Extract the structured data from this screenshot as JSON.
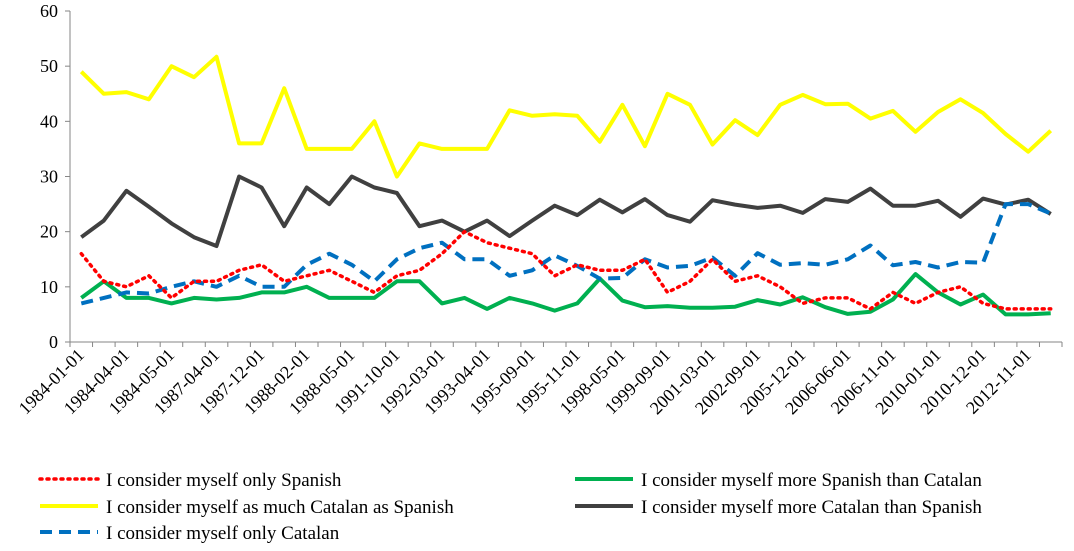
{
  "chart_data": {
    "type": "line",
    "title": "",
    "xlabel": "",
    "ylabel": "",
    "ylim": [
      0,
      60
    ],
    "yticks": [
      0,
      10,
      20,
      30,
      40,
      50,
      60
    ],
    "grid": false,
    "legend_position": "bottom",
    "tick_labels": [
      "1984-01-01",
      "1984-04-01",
      "1984-05-01",
      "1987-04-01",
      "1987-12-01",
      "1988-02-01",
      "1988-05-01",
      "1991-10-01",
      "1992-03-01",
      "1993-04-01",
      "1995-09-01",
      "1995-11-01",
      "1998-05-01",
      "1999-09-01",
      "2001-03-01",
      "2002-09-01",
      "2005-12-01",
      "2006-06-01",
      "2006-11-01",
      "2010-01-01",
      "2010-12-01",
      "2012-11-01"
    ],
    "series": [
      {
        "name": "I consider myself only Spanish",
        "color": "#ff0000",
        "style": "dotted",
        "values": [
          16,
          11,
          10,
          12,
          8,
          11,
          11,
          13,
          14,
          11,
          12,
          13,
          11,
          9,
          12,
          13,
          16,
          20,
          18,
          17,
          16,
          12,
          14,
          13,
          13,
          15,
          9,
          11,
          15,
          11,
          12,
          10,
          7,
          8,
          8,
          6,
          9,
          7,
          9,
          10,
          7,
          6,
          6,
          6
        ]
      },
      {
        "name": "I consider myself more Spanish than Catalan",
        "color": "#00b050",
        "style": "solid",
        "values": [
          8,
          11,
          8,
          8,
          7,
          8,
          7.7,
          8,
          9,
          9,
          10,
          8,
          8,
          8,
          11,
          11,
          7,
          8,
          6,
          8,
          7,
          5.7,
          7,
          11.5,
          7.5,
          6.3,
          6.5,
          6.2,
          6.2,
          6.4,
          7.6,
          6.8,
          8.1,
          6.3,
          5.1,
          5.5,
          7.7,
          12.3,
          9,
          6.8,
          8.6,
          5,
          5,
          5.2
        ]
      },
      {
        "name": "I consider myself as much Catalan as Spanish",
        "color": "#ffff00",
        "style": "solid",
        "values": [
          49,
          45,
          45.3,
          44,
          50,
          48,
          51.7,
          36,
          36,
          46,
          35,
          35,
          35,
          40,
          30,
          36,
          35,
          35,
          35,
          42,
          41,
          41.3,
          41,
          36.3,
          43,
          35.5,
          45,
          43,
          35.8,
          40.2,
          37.5,
          43,
          44.8,
          43.1,
          43.2,
          40.5,
          41.9,
          38.1,
          41.7,
          44,
          41.5,
          37.7,
          34.5,
          38.3
        ]
      },
      {
        "name": "I consider myself more Catalan than Spanish",
        "color": "#404040",
        "style": "solid",
        "values": [
          19,
          22,
          27.4,
          24.5,
          21.5,
          19,
          17.4,
          30,
          28,
          21,
          28,
          25,
          30,
          28,
          27,
          21,
          22,
          20,
          22,
          19.2,
          22,
          24.7,
          23,
          25.8,
          23.5,
          25.9,
          23,
          21.8,
          25.7,
          24.9,
          24.3,
          24.7,
          23.4,
          25.9,
          25.4,
          27.8,
          24.7,
          24.7,
          25.6,
          22.7,
          26,
          24.9,
          25.8,
          23.2
        ]
      },
      {
        "name": "I consider myself only Catalan",
        "color": "#0070c0",
        "style": "dashed",
        "values": [
          7,
          8,
          9,
          8.8,
          10,
          11,
          10,
          12,
          10,
          10,
          14,
          16,
          14,
          11,
          15,
          17,
          18,
          15,
          15,
          12,
          13,
          15.7,
          13.8,
          11.5,
          11.6,
          15,
          13.5,
          13.8,
          15.3,
          12,
          16.1,
          14,
          14.3,
          14,
          15,
          17.5,
          13.9,
          14.5,
          13.5,
          14.5,
          14.4,
          25,
          25,
          23.3
        ]
      }
    ]
  }
}
